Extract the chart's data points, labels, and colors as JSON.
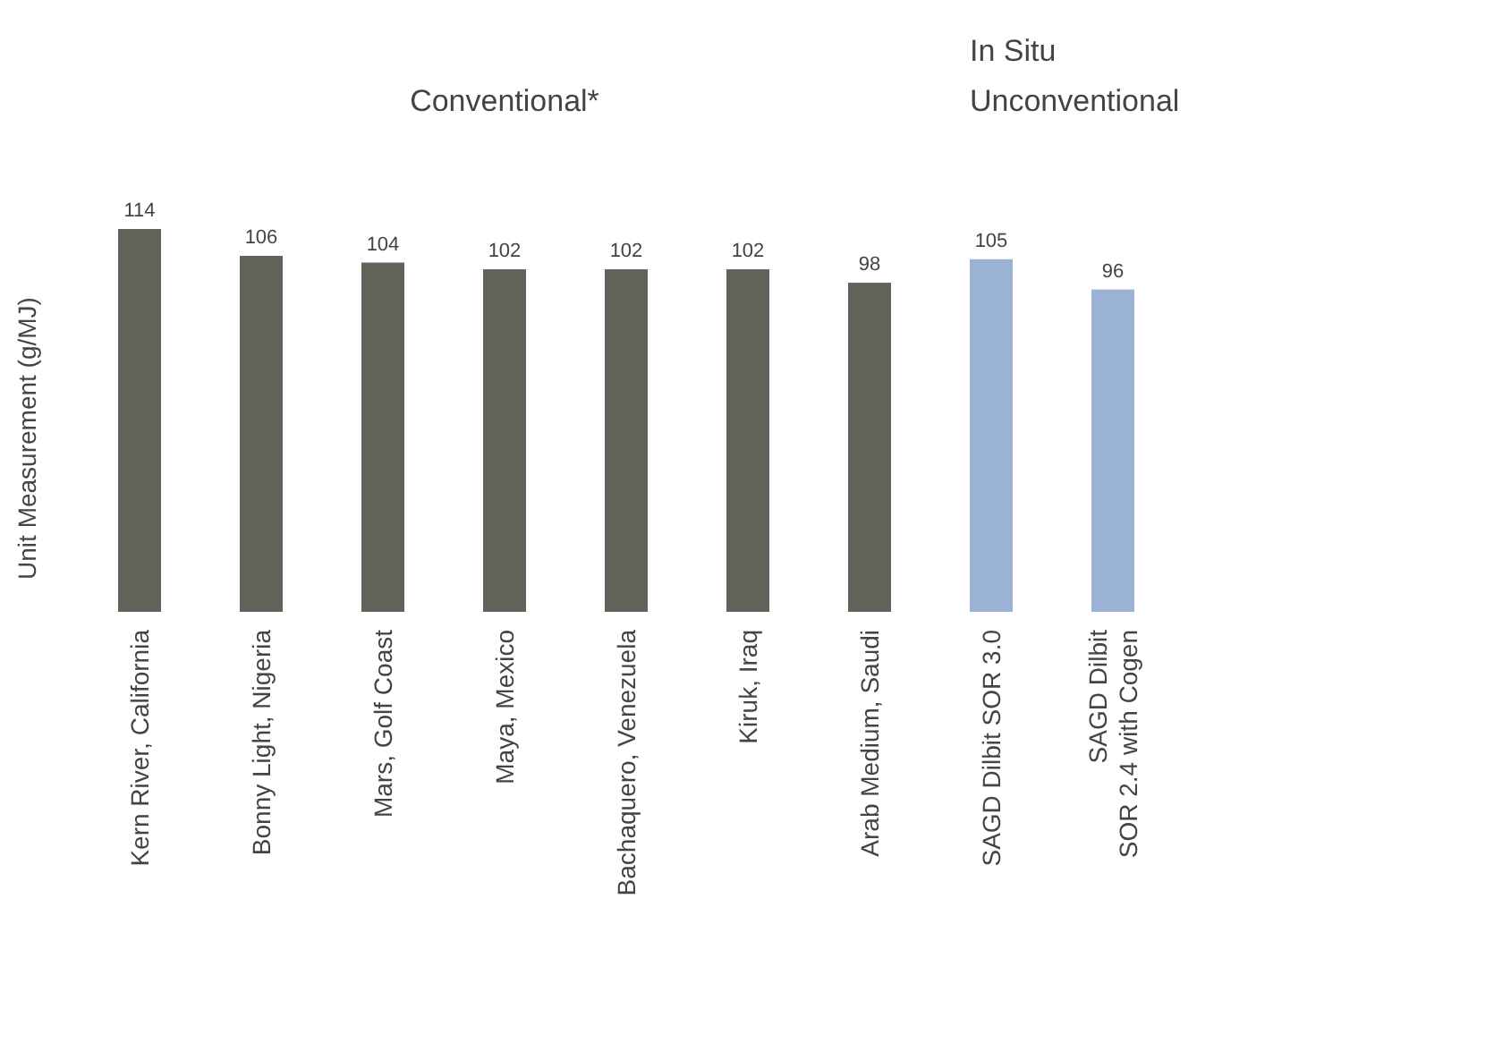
{
  "chart_data": {
    "type": "bar",
    "ylabel": "Unit Measurement (g/MJ)",
    "data_labels": true,
    "categories": [
      "Kern River, California",
      "Bonny Light, Nigeria",
      "Mars, Golf Coast",
      "Maya, Mexico",
      "Bachaquero, Venezuela",
      "Kiruk, Iraq",
      "Arab Medium, Saudi",
      "SAGD Dilbit SOR 3.0",
      "SAGD Dilbit SOR 2.4 with Cogen"
    ],
    "values": [
      114,
      106,
      104,
      102,
      102,
      102,
      98,
      105,
      96
    ],
    "colors": [
      "#64635a",
      "#64635a",
      "#64635a",
      "#64635a",
      "#64635a",
      "#64635a",
      "#64635a",
      "#9ab3d5",
      "#9ab3d5"
    ],
    "annotations": [
      "Conventional*",
      "In Situ Unconventional"
    ]
  }
}
